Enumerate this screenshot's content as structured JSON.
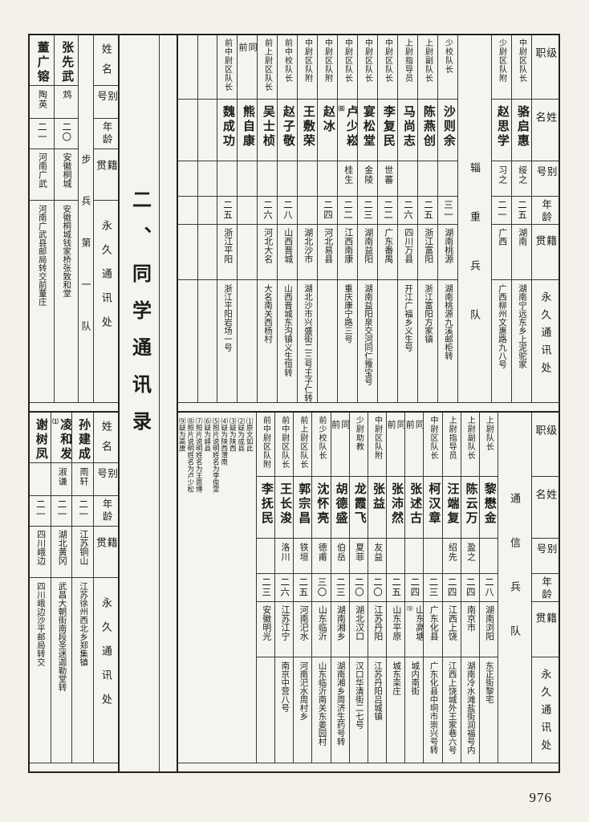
{
  "page": {
    "section_title": "二、同学通讯录",
    "number": "976"
  },
  "headers_full": [
    "级职",
    "姓名",
    "别号",
    "年龄",
    "籍贯",
    "永久通讯处"
  ],
  "headers_short": [
    "姓名",
    "别号",
    "年龄",
    "籍贯",
    "永久通讯处"
  ],
  "footnotes": [
    "⑴原文如此",
    "⑵疑为成县",
    "⑶疑为陕西",
    "⑷疑为陕西渭南",
    "⑸照片说明姓名为李俊雯",
    "⑹疑为峄县",
    "⑺照片说明姓名为王恩博",
    "⑻照片说明姓名为卢少松",
    "⑼疑为高唐"
  ],
  "top_main_columns": [
    {
      "type": "header"
    },
    {
      "type": "entry",
      "rank": "中尉区队长",
      "name": "骆启惠",
      "alias": "绥之",
      "age": "二五",
      "native": "湖南",
      "address": "湖南宁远东乡上泥驼家"
    },
    {
      "type": "entry",
      "rank": "少尉区队附",
      "name": "赵思学",
      "alias": "习之",
      "age": "二一",
      "native": "广西",
      "address": "广西柳州文惠路九八号"
    },
    {
      "type": "unit",
      "label": "辎重兵队"
    },
    {
      "type": "entry",
      "rank": "少校队长",
      "name": "沙则余",
      "alias": "",
      "age": "三一",
      "native": "湖南桃源",
      "address": "湖南桃源九溪邮柜转"
    },
    {
      "type": "entry",
      "rank": "上尉副队长",
      "name": "陈燕创",
      "alias": "",
      "age": "二五",
      "native": "浙江富阳",
      "address": "浙江富阳方家镇"
    },
    {
      "type": "entry",
      "rank": "上尉指导员",
      "name": "马尚志",
      "alias": "",
      "age": "二六",
      "native": "四川万县",
      "address": "开江广福乡义生号"
    },
    {
      "type": "entry",
      "rank": "中尉区队长",
      "name": "李复民",
      "alias": "世蕃",
      "age": "二二",
      "native": "广东番禺",
      "address": ""
    },
    {
      "type": "entry",
      "rank": "中尉区队长",
      "name": "宴松堂",
      "alias": "金陵",
      "age": "二三",
      "native": "湖南益阳",
      "address": "湖南益阳泉交河同仁豫宝号"
    },
    {
      "type": "entry",
      "rank": "中尉区队长",
      "name": "卢少崧",
      "name_note": "⑻",
      "alias": "桂生",
      "age": "二二",
      "native": "江西南康",
      "address": "重庆康宁路三号"
    },
    {
      "type": "entry",
      "rank": "中尉区队附",
      "name": "赵冰",
      "alias": "",
      "age": "二四",
      "native": "河北易县",
      "address": ""
    },
    {
      "type": "entry",
      "rank": "中尉区队附",
      "name": "王敷荣",
      "alias": "",
      "age": "",
      "native": "湖北沙市",
      "address": "湖北沙市兴盛街二三号王子仁转"
    },
    {
      "type": "entry",
      "rank": "前中校队长",
      "name": "赵子敬",
      "alias": "",
      "age": "二八",
      "native": "山西晋城",
      "address": "山西晋城东沟镇义生恒转"
    },
    {
      "type": "entry",
      "rank": "前上尉区队长",
      "name": "吴士桢",
      "alias": "",
      "age": "二六",
      "native": "河北大名",
      "address": "大名南关西杨村"
    },
    {
      "type": "entry",
      "rank": "同前",
      "name": "熊自康",
      "alias": "",
      "age": "",
      "native": "",
      "address": ""
    },
    {
      "type": "entry",
      "rank": "前中尉区队长",
      "name": "魏成功",
      "alias": "",
      "age": "二五",
      "native": "浙江平阳",
      "address": "浙江平阳岩场一号"
    },
    {
      "type": "blank"
    },
    {
      "type": "blank"
    }
  ],
  "top_left_columns": [
    {
      "type": "header_short"
    },
    {
      "type": "unit_narrow",
      "label": "步兵第一队"
    },
    {
      "type": "entry",
      "name": "张先武",
      "alias": "鸩",
      "age": "二〇",
      "native": "安徽桐城",
      "address": "安徽桐城钱家桥张致和堂"
    },
    {
      "type": "entry",
      "name": "董广镕",
      "alias": "陶英",
      "age": "二一",
      "native": "河南广武",
      "address": "河南广武县邮局转交前蕫庄"
    }
  ],
  "bottom_main_columns": [
    {
      "type": "header"
    },
    {
      "type": "unit",
      "label": "通信兵队"
    },
    {
      "type": "entry",
      "rank": "上尉队长",
      "name": "黎懋金",
      "alias": "",
      "age": "二八",
      "native": "湖南浏阳",
      "address": "东正街黎宅"
    },
    {
      "type": "entry",
      "rank": "上尉副队长",
      "name": "陈云万",
      "alias": "盈之",
      "age": "二四",
      "native": "南京市",
      "address": "湖南冷水滩盐街润福号内"
    },
    {
      "type": "entry",
      "rank": "上尉指导员",
      "name": "汪端复",
      "alias": "绍先",
      "age": "二四",
      "native": "江西上饶",
      "address": "江西上饶城外王家巷六号"
    },
    {
      "type": "entry",
      "rank": "中尉区队长",
      "name": "柯汉章",
      "alias": "",
      "age": "二三",
      "native": "广东化县",
      "address": "广东化县中垌市崇兴号转"
    },
    {
      "type": "entry",
      "rank": "同前",
      "name": "张述古",
      "alias": "",
      "age": "二四",
      "native": "山东高塘",
      "native_note": "⑼",
      "address": "城内南街"
    },
    {
      "type": "entry",
      "rank": "同前",
      "name": "张沛然",
      "alias": "",
      "age": "二五",
      "native": "山东平原",
      "address": "城东栾庄"
    },
    {
      "type": "entry",
      "rank": "中尉区队附",
      "name": "张益",
      "alias": "友益",
      "age": "二〇",
      "native": "江苏丹阳",
      "address": "江苏丹阳吕城镇"
    },
    {
      "type": "entry",
      "rank": "少尉助教",
      "name": "龙霞飞",
      "alias": "夏菲",
      "age": "二〇",
      "native": "湖北汉口",
      "address": "汉口华清街二七号"
    },
    {
      "type": "entry",
      "rank": "同前",
      "name": "胡德盛",
      "alias": "伯岳",
      "age": "二三",
      "native": "湖南湘乡",
      "address": "湖南湘乡周济生药号转"
    },
    {
      "type": "entry",
      "rank": "前少校队长",
      "name": "沈怀亮",
      "alias": "德甫",
      "age": "三〇",
      "native": "山东临沂",
      "address": "山东临沂南关东姜园村"
    },
    {
      "type": "entry",
      "rank": "前上尉区队长",
      "name": "郭宗昌",
      "alias": "铁垣",
      "age": "二五",
      "native": "河南汜水",
      "address": "河南汜水周村乡"
    },
    {
      "type": "entry",
      "rank": "前中尉区队长",
      "name": "王长浚",
      "alias": "洛川",
      "age": "二六",
      "native": "江苏江宁",
      "address": "南京中营八号"
    },
    {
      "type": "entry",
      "rank": "前中尉区队附",
      "name": "李抚民",
      "alias": "",
      "age": "二三",
      "native": "安徽明光",
      "address": ""
    },
    {
      "type": "notes"
    }
  ],
  "bottom_left_columns": [
    {
      "type": "header_short"
    },
    {
      "type": "entry",
      "name": "孙建成",
      "alias": "雨轩",
      "age": "二一",
      "native": "江苏铜山",
      "address": "江苏徐州西北乡郑集镇"
    },
    {
      "type": "entry",
      "name": "凌和发",
      "name_note": "⑴",
      "alias": "淑谦",
      "age": "二一",
      "native": "湖北黄冈",
      "address": "武昌大朝街南段圣迷迦勒堂转"
    },
    {
      "type": "entry",
      "name": "谢树凤",
      "alias": "",
      "age": "二一",
      "native": "四川峨边",
      "address": "四川峨边沙平邮局转交"
    }
  ]
}
